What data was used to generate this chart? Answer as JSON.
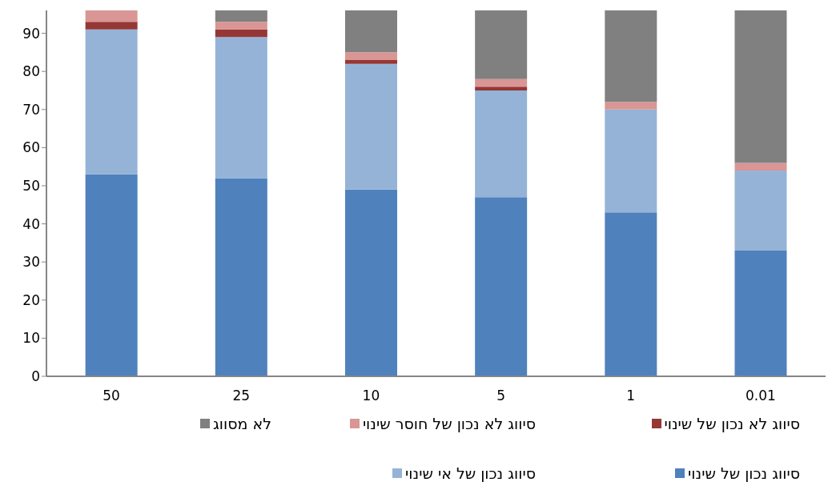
{
  "chart_data": {
    "type": "bar",
    "stacked": true,
    "categories": [
      "50",
      "25",
      "10",
      "5",
      "1",
      "0.01"
    ],
    "series": [
      {
        "name": "סיווג נכון של שינוי",
        "color": "#4f81bd",
        "values": [
          53,
          52,
          49,
          47,
          43,
          33
        ]
      },
      {
        "name": "סיווג נכון של אי שינוי",
        "color": "#95b3d7",
        "values": [
          38,
          37,
          33,
          28,
          27,
          21
        ]
      },
      {
        "name": "סיווג לא נכון של שינוי",
        "color": "#953735",
        "values": [
          2,
          2,
          1,
          1,
          0,
          0
        ]
      },
      {
        "name": "סיווג לא נכון של חוסר שינוי",
        "color": "#d99694",
        "values": [
          3,
          2,
          2,
          2,
          2,
          2
        ]
      },
      {
        "name": "לא מסווג",
        "color": "#808080",
        "values": [
          0,
          3,
          11,
          18,
          24,
          40
        ]
      }
    ],
    "ylim": [
      0,
      96
    ],
    "yticks": [
      0,
      10,
      20,
      30,
      40,
      50,
      60,
      70,
      80,
      90
    ],
    "grid": false,
    "legend": "bottom"
  }
}
